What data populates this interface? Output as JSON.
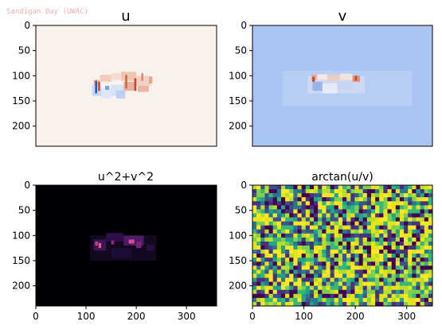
{
  "watermark": "Sandigan Bay (UWAC)",
  "chart_data": [
    {
      "type": "heatmap",
      "title": "u",
      "colormap": "coolwarm-diverging",
      "yticks": [
        0,
        50,
        100,
        150,
        200
      ],
      "xticks": [],
      "xlim": [
        0,
        360
      ],
      "ylim": [
        240,
        0
      ],
      "pattern": "near-zero field with red/blue feature around x 100-240, y 90-150"
    },
    {
      "type": "heatmap",
      "title": "v",
      "colormap": "coolwarm",
      "yticks": [
        0,
        50,
        100,
        150,
        200
      ],
      "xticks": [],
      "xlim": [
        0,
        360
      ],
      "ylim": [
        240,
        0
      ],
      "pattern": "uniform blue background with small red/white feature around x 110-220, y 95-135"
    },
    {
      "type": "heatmap",
      "title": "u^2+v^2",
      "colormap": "magma",
      "yticks": [
        0,
        50,
        100,
        150,
        200
      ],
      "xticks": [
        0,
        100,
        200,
        300
      ],
      "xlim": [
        0,
        360
      ],
      "ylim": [
        240,
        0
      ],
      "pattern": "black background with magenta hotspots around x 110-230, y 95-145"
    },
    {
      "type": "heatmap",
      "title": "arctan(u/v)",
      "colormap": "viridis",
      "yticks": [
        0,
        50,
        100,
        150,
        200
      ],
      "xticks": [
        0,
        100,
        200,
        300
      ],
      "xlim": [
        0,
        350
      ],
      "ylim": [
        240,
        0
      ],
      "pattern": "noisy patchwork of yellow, green and dark purple blocks"
    }
  ]
}
